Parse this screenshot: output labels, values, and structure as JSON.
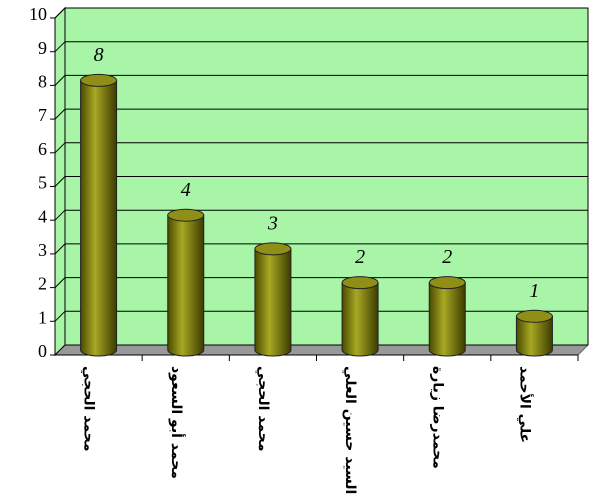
{
  "chart_data": {
    "type": "bar",
    "categories": [
      "محمد الحجي",
      "محمد أبو السعود",
      "محمد الحجي",
      "السيد حسين العلي",
      "محمدرضا زيارة",
      "علي الأحمد"
    ],
    "values": [
      8,
      4,
      3,
      2,
      2,
      1
    ],
    "color": "#8a8a10",
    "ylim": [
      0,
      10
    ],
    "yticks": [
      0,
      1,
      2,
      3,
      4,
      5,
      6,
      7,
      8,
      9,
      10
    ],
    "grid": true,
    "background": "#a8f5a8"
  }
}
